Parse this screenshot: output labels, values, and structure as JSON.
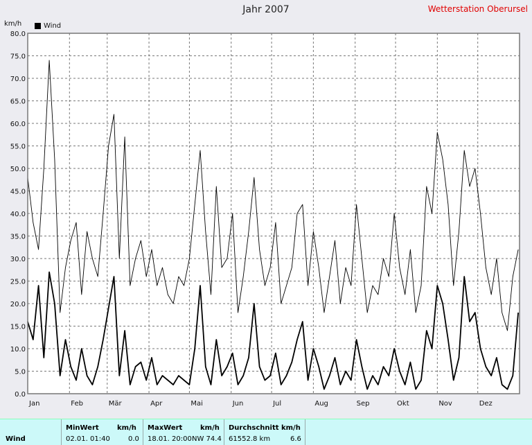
{
  "chart_data": {
    "type": "line",
    "title": "Jahr 2007",
    "ylabel": "km/h",
    "ylim": [
      0,
      80
    ],
    "yticks": [
      "0.0",
      "5.0",
      "10.0",
      "15.0",
      "20.0",
      "25.0",
      "30.0",
      "35.0",
      "40.0",
      "45.0",
      "50.0",
      "55.0",
      "60.0",
      "65.0",
      "70.0",
      "75.0",
      "80.0"
    ],
    "xticks": [
      "Jan",
      "Feb",
      "Mär",
      "Apr",
      "Mai",
      "Jun",
      "Jul",
      "Aug",
      "Sep",
      "Okt",
      "Nov",
      "Dez"
    ],
    "grid": true,
    "legend_position": "top-left",
    "series": [
      {
        "name": "Wind",
        "role": "gust",
        "x": [
          0,
          4,
          8,
          12,
          16,
          20,
          24,
          28,
          32,
          36,
          40,
          44,
          48,
          52,
          56,
          60,
          64,
          68,
          72,
          76,
          80,
          84,
          88,
          92,
          96,
          100,
          104,
          108,
          112,
          116,
          120,
          124,
          128,
          132,
          136,
          140,
          144,
          148,
          152,
          156,
          160,
          164,
          168,
          172,
          176,
          180,
          184,
          188,
          192,
          196,
          200,
          204,
          208,
          212,
          216,
          220,
          224,
          228,
          232,
          236,
          240,
          244,
          248,
          252,
          256,
          260,
          264,
          268,
          272,
          276,
          280,
          284,
          288,
          292,
          296,
          300,
          304,
          308,
          312,
          316,
          320,
          324,
          328,
          332,
          336,
          340,
          344,
          348,
          352,
          356,
          360,
          364
        ],
        "values": [
          48,
          38,
          32,
          50,
          74,
          52,
          18,
          28,
          34,
          38,
          22,
          36,
          30,
          26,
          40,
          55,
          62,
          30,
          57,
          24,
          30,
          34,
          26,
          32,
          24,
          28,
          22,
          20,
          26,
          24,
          30,
          42,
          54,
          36,
          22,
          46,
          28,
          30,
          40,
          18,
          26,
          36,
          48,
          32,
          24,
          28,
          38,
          20,
          24,
          28,
          40,
          42,
          24,
          36,
          28,
          18,
          26,
          34,
          20,
          28,
          24,
          42,
          30,
          18,
          24,
          22,
          30,
          26,
          40,
          28,
          22,
          32,
          18,
          24,
          46,
          40,
          58,
          52,
          42,
          24,
          36,
          54,
          46,
          50,
          40,
          28,
          22,
          30,
          18,
          14,
          26,
          32
        ]
      },
      {
        "name": "Wind",
        "role": "mean",
        "x": [
          0,
          4,
          8,
          12,
          16,
          20,
          24,
          28,
          32,
          36,
          40,
          44,
          48,
          52,
          56,
          60,
          64,
          68,
          72,
          76,
          80,
          84,
          88,
          92,
          96,
          100,
          104,
          108,
          112,
          116,
          120,
          124,
          128,
          132,
          136,
          140,
          144,
          148,
          152,
          156,
          160,
          164,
          168,
          172,
          176,
          180,
          184,
          188,
          192,
          196,
          200,
          204,
          208,
          212,
          216,
          220,
          224,
          228,
          232,
          236,
          240,
          244,
          248,
          252,
          256,
          260,
          264,
          268,
          272,
          276,
          280,
          284,
          288,
          292,
          296,
          300,
          304,
          308,
          312,
          316,
          320,
          324,
          328,
          332,
          336,
          340,
          344,
          348,
          352,
          356,
          360,
          364
        ],
        "values": [
          16,
          12,
          24,
          8,
          27,
          20,
          4,
          12,
          6,
          3,
          10,
          4,
          2,
          6,
          12,
          19,
          26,
          4,
          14,
          2,
          6,
          7,
          3,
          8,
          2,
          4,
          3,
          2,
          4,
          3,
          2,
          10,
          24,
          6,
          2,
          12,
          4,
          6,
          9,
          2,
          4,
          8,
          20,
          6,
          3,
          4,
          9,
          2,
          4,
          7,
          12,
          16,
          3,
          10,
          6,
          1,
          4,
          8,
          2,
          5,
          3,
          12,
          6,
          1,
          4,
          2,
          6,
          4,
          10,
          5,
          2,
          7,
          1,
          3,
          14,
          10,
          24,
          20,
          12,
          3,
          8,
          26,
          16,
          18,
          10,
          6,
          4,
          8,
          2,
          1,
          4,
          18
        ]
      }
    ]
  },
  "header": {
    "station": "Wetterstation Oberursel"
  },
  "table": {
    "row_label": "Wind",
    "min_header": "MinWert",
    "min_unit": "km/h",
    "min_time": "02.01. 01:40",
    "min_value": "0.0",
    "max_header": "MaxWert",
    "max_unit": "km/h",
    "max_time": "18.01. 20:00",
    "max_dir_value": "NW 74.4",
    "avg_header": "Durchschnitt km/h",
    "avg_distance": "61552.8 km",
    "avg_value": "6.6"
  },
  "colors": {
    "series": "#000000",
    "grid": "#777777",
    "plot_background": "#ffffff",
    "station": "#e00000",
    "table_background": "#ccf9f9"
  }
}
